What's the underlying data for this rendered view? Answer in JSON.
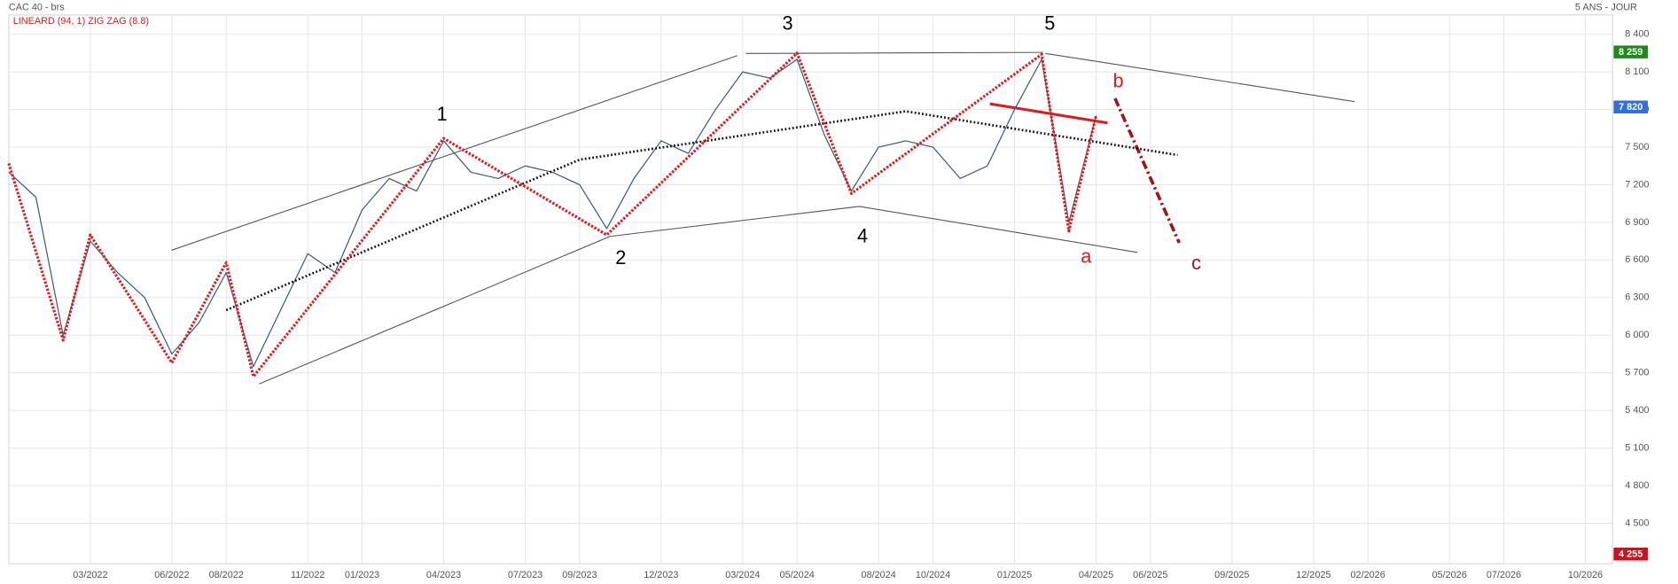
{
  "chart_data": {
    "type": "line",
    "title": "CAC 40 - brs",
    "subtitle": "5 ANS - JOUR",
    "xlim": [
      "12/2021",
      "11/2026"
    ],
    "xticks": [
      "03/2022",
      "06/2022",
      "08/2022",
      "11/2022",
      "01/2023",
      "04/2023",
      "07/2023",
      "09/2023",
      "12/2023",
      "03/2024",
      "05/2024",
      "08/2024",
      "10/2024",
      "01/2025",
      "04/2025",
      "06/2025",
      "09/2025",
      "12/2025",
      "02/2026",
      "05/2026",
      "07/2026",
      "10/2026"
    ],
    "ylim": [
      4178,
      8554
    ],
    "yticks": [
      {
        "value": 4500,
        "label": "4 500"
      },
      {
        "value": 4800,
        "label": "4 800"
      },
      {
        "value": 5100,
        "label": "5 100"
      },
      {
        "value": 5400,
        "label": "5 400"
      },
      {
        "value": 5700,
        "label": "5 700"
      },
      {
        "value": 6000,
        "label": "6 000"
      },
      {
        "value": 6300,
        "label": "6 300"
      },
      {
        "value": 6600,
        "label": "6 600"
      },
      {
        "value": 6900,
        "label": "6 900"
      },
      {
        "value": 7200,
        "label": "7 200"
      },
      {
        "value": 7500,
        "label": "7 500"
      },
      {
        "value": 7800,
        "label": "7 800"
      },
      {
        "value": 8100,
        "label": "8 100"
      },
      {
        "value": 8400,
        "label": "8 400"
      }
    ],
    "grid": true,
    "series": [
      {
        "color": "#3d5a6e",
        "x": [
          "12/2021",
          "01/2022",
          "02/2022",
          "03/2022",
          "04/2022",
          "05/2022",
          "06/2022",
          "07/2022",
          "08/2022",
          "09/2022",
          "10/2022",
          "11/2022",
          "12/2022",
          "01/2023",
          "02/2023",
          "03/2023",
          "04/2023",
          "05/2023",
          "06/2023",
          "07/2023",
          "08/2023",
          "09/2023",
          "10/2023",
          "11/2023",
          "12/2023",
          "01/2024",
          "02/2024",
          "03/2024",
          "04/2024",
          "05/2024",
          "06/2024",
          "07/2024",
          "08/2024",
          "09/2024",
          "10/2024",
          "11/2024",
          "12/2024",
          "01/2025",
          "02/2025",
          "03/2025",
          "04/2025"
        ],
        "values": [
          7300,
          7100,
          6000,
          6750,
          6500,
          6300,
          5850,
          6100,
          6500,
          5750,
          6200,
          6650,
          6500,
          7000,
          7250,
          7150,
          7550,
          7300,
          7250,
          7350,
          7300,
          7200,
          6850,
          7250,
          7550,
          7450,
          7800,
          8100,
          8050,
          8200,
          7600,
          7150,
          7500,
          7550,
          7500,
          7250,
          7350,
          7800,
          8200,
          6900,
          7750
        ]
      },
      {
        "name": "LINEARD (94, 1)",
        "color": "#111111",
        "x": [
          "08/2022",
          "09/2023",
          "09/2024",
          "07/2025"
        ],
        "values": [
          6200,
          7400,
          7786,
          7437
        ]
      },
      {
        "name": "ZIG ZAG (8.8)",
        "color": "#e0191e",
        "x": [
          "12/2021",
          "02/2022",
          "03/2022",
          "06/2022",
          "08/2022",
          "09/2022",
          "04/2023",
          "10/2023",
          "05/2024",
          "07/2024",
          "02/2025",
          "03/2025",
          "04/2025"
        ],
        "values": [
          7370,
          5960,
          6800,
          5780,
          6580,
          5670,
          7570,
          6800,
          8250,
          7130,
          8240,
          6830,
          7750
        ]
      }
    ],
    "price_tags": [
      {
        "value": 8259,
        "label": "8 259",
        "color": "#1e8a1e"
      },
      {
        "value": 7820,
        "label": "7 820",
        "color": "#2f6fe0"
      },
      {
        "value": 4255,
        "label": "4 255",
        "color": "#c8141e"
      }
    ],
    "wave_labels": [
      "1",
      "2",
      "3",
      "4",
      "5",
      "a",
      "b",
      "c"
    ]
  }
}
